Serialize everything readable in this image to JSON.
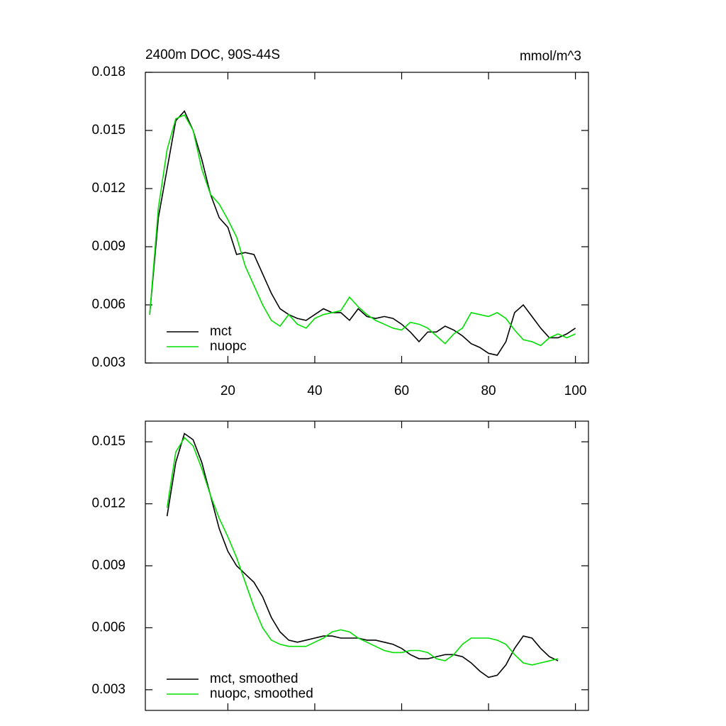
{
  "chart_data": [
    {
      "type": "line",
      "title": "2400m DOC, 90S-44S",
      "units_label": "mmol/m^3",
      "x": [
        2,
        4,
        6,
        8,
        10,
        12,
        14,
        16,
        18,
        20,
        22,
        24,
        26,
        28,
        30,
        32,
        34,
        36,
        38,
        40,
        42,
        44,
        46,
        48,
        50,
        52,
        54,
        56,
        58,
        60,
        62,
        64,
        66,
        68,
        70,
        72,
        74,
        76,
        78,
        80,
        82,
        84,
        86,
        88,
        90,
        92,
        94,
        96,
        98,
        100
      ],
      "series": [
        {
          "name": "mct",
          "color": "#000000",
          "values": [
            0.0055,
            0.0105,
            0.013,
            0.0155,
            0.016,
            0.015,
            0.0135,
            0.0117,
            0.0105,
            0.01,
            0.0086,
            0.0087,
            0.0086,
            0.0076,
            0.0066,
            0.0058,
            0.0055,
            0.0053,
            0.0052,
            0.0055,
            0.0058,
            0.0056,
            0.0056,
            0.0052,
            0.0058,
            0.0054,
            0.0053,
            0.0054,
            0.0053,
            0.005,
            0.0046,
            0.0041,
            0.0046,
            0.0046,
            0.0049,
            0.0047,
            0.0044,
            0.004,
            0.0038,
            0.0035,
            0.0034,
            0.0041,
            0.0056,
            0.006,
            0.0054,
            0.0048,
            0.0043,
            0.0043,
            0.0045,
            0.0048
          ]
        },
        {
          "name": "nuopc",
          "color": "#00e000",
          "values": [
            0.0055,
            0.011,
            0.014,
            0.0156,
            0.0158,
            0.015,
            0.013,
            0.0117,
            0.0112,
            0.0104,
            0.0095,
            0.008,
            0.007,
            0.006,
            0.0052,
            0.0049,
            0.0055,
            0.005,
            0.0048,
            0.0053,
            0.0055,
            0.0056,
            0.0057,
            0.0064,
            0.0059,
            0.0055,
            0.0052,
            0.005,
            0.0048,
            0.0047,
            0.0051,
            0.005,
            0.0048,
            0.0044,
            0.004,
            0.0045,
            0.0048,
            0.0056,
            0.0055,
            0.0054,
            0.0056,
            0.0053,
            0.0047,
            0.0042,
            0.0041,
            0.0039,
            0.0043,
            0.0045,
            0.0043,
            0.0045
          ]
        }
      ],
      "xlim": [
        1,
        103
      ],
      "xticks": [
        20,
        40,
        60,
        80,
        100
      ],
      "ylim": [
        0.003,
        0.018
      ],
      "yticks": [
        0.003,
        0.006,
        0.009,
        0.012,
        0.015,
        0.018
      ],
      "show_xtick_labels": true
    },
    {
      "type": "line",
      "x": [
        6,
        8,
        10,
        12,
        14,
        16,
        18,
        20,
        22,
        24,
        26,
        28,
        30,
        32,
        34,
        36,
        38,
        40,
        42,
        44,
        46,
        48,
        50,
        52,
        54,
        56,
        58,
        60,
        62,
        64,
        66,
        68,
        70,
        72,
        74,
        76,
        78,
        80,
        82,
        84,
        86,
        88,
        90,
        92,
        94,
        96
      ],
      "series": [
        {
          "name": "mct, smoothed",
          "color": "#000000",
          "values": [
            0.0114,
            0.014,
            0.0154,
            0.0151,
            0.014,
            0.0124,
            0.0108,
            0.0097,
            0.009,
            0.0086,
            0.0082,
            0.0075,
            0.0065,
            0.0058,
            0.0054,
            0.0053,
            0.0054,
            0.0055,
            0.0056,
            0.0056,
            0.0055,
            0.0055,
            0.0055,
            0.0054,
            0.0054,
            0.0053,
            0.0052,
            0.005,
            0.0047,
            0.0045,
            0.0045,
            0.0046,
            0.0047,
            0.0047,
            0.0046,
            0.0043,
            0.0039,
            0.0036,
            0.0037,
            0.0042,
            0.005,
            0.0056,
            0.0055,
            0.005,
            0.0046,
            0.0044
          ]
        },
        {
          "name": "nuopc, smoothed",
          "color": "#00e000",
          "values": [
            0.0118,
            0.0145,
            0.0152,
            0.0148,
            0.0137,
            0.0124,
            0.0113,
            0.0104,
            0.0094,
            0.0082,
            0.007,
            0.006,
            0.0054,
            0.0052,
            0.0051,
            0.0051,
            0.0051,
            0.0053,
            0.0055,
            0.0058,
            0.0059,
            0.0058,
            0.0055,
            0.0053,
            0.0051,
            0.0049,
            0.0048,
            0.0048,
            0.0049,
            0.0049,
            0.0048,
            0.0045,
            0.0044,
            0.0047,
            0.0052,
            0.0055,
            0.0055,
            0.0055,
            0.0054,
            0.0052,
            0.0047,
            0.0043,
            0.0042,
            0.0043,
            0.0044,
            0.0045
          ]
        }
      ],
      "xlim": [
        1,
        103
      ],
      "xticks": [
        20,
        40,
        60,
        80,
        100
      ],
      "ylim": [
        0.002,
        0.016
      ],
      "yticks": [
        0.003,
        0.006,
        0.009,
        0.012,
        0.015
      ],
      "show_xtick_labels": false
    }
  ]
}
